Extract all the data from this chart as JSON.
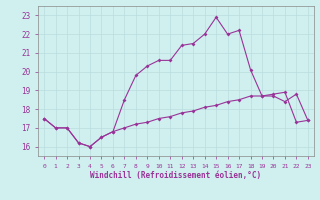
{
  "xlabel": "Windchill (Refroidissement éolien,°C)",
  "bg_color": "#cff0ee",
  "line_color": "#993399",
  "grid_color": "#bbdddd",
  "x_values": [
    0,
    1,
    2,
    3,
    4,
    5,
    6,
    7,
    8,
    9,
    10,
    11,
    12,
    13,
    14,
    15,
    16,
    17,
    18,
    19,
    20,
    21,
    22,
    23
  ],
  "upper_line": [
    17.5,
    17.0,
    17.0,
    16.2,
    16.0,
    16.5,
    16.8,
    18.5,
    19.8,
    20.3,
    20.6,
    20.6,
    21.4,
    21.5,
    22.0,
    22.9,
    22.0,
    22.2,
    20.1,
    18.7,
    18.7,
    18.4,
    18.8,
    17.4
  ],
  "lower_line": [
    17.5,
    17.0,
    17.0,
    16.2,
    16.0,
    16.5,
    16.8,
    17.0,
    17.2,
    17.3,
    17.5,
    17.6,
    17.8,
    17.9,
    18.1,
    18.2,
    18.4,
    18.5,
    18.7,
    18.7,
    18.8,
    18.9,
    17.3,
    17.4
  ],
  "ylim": [
    15.5,
    23.5
  ],
  "xlim": [
    -0.5,
    23.5
  ],
  "yticks": [
    16,
    17,
    18,
    19,
    20,
    21,
    22,
    23
  ],
  "xticks": [
    0,
    1,
    2,
    3,
    4,
    5,
    6,
    7,
    8,
    9,
    10,
    11,
    12,
    13,
    14,
    15,
    16,
    17,
    18,
    19,
    20,
    21,
    22,
    23
  ],
  "xtick_labels": [
    "0",
    "1",
    "2",
    "3",
    "4",
    "5",
    "6",
    "7",
    "8",
    "9",
    "10",
    "11",
    "12",
    "13",
    "14",
    "15",
    "16",
    "17",
    "18",
    "19",
    "20",
    "21",
    "22",
    "23"
  ]
}
